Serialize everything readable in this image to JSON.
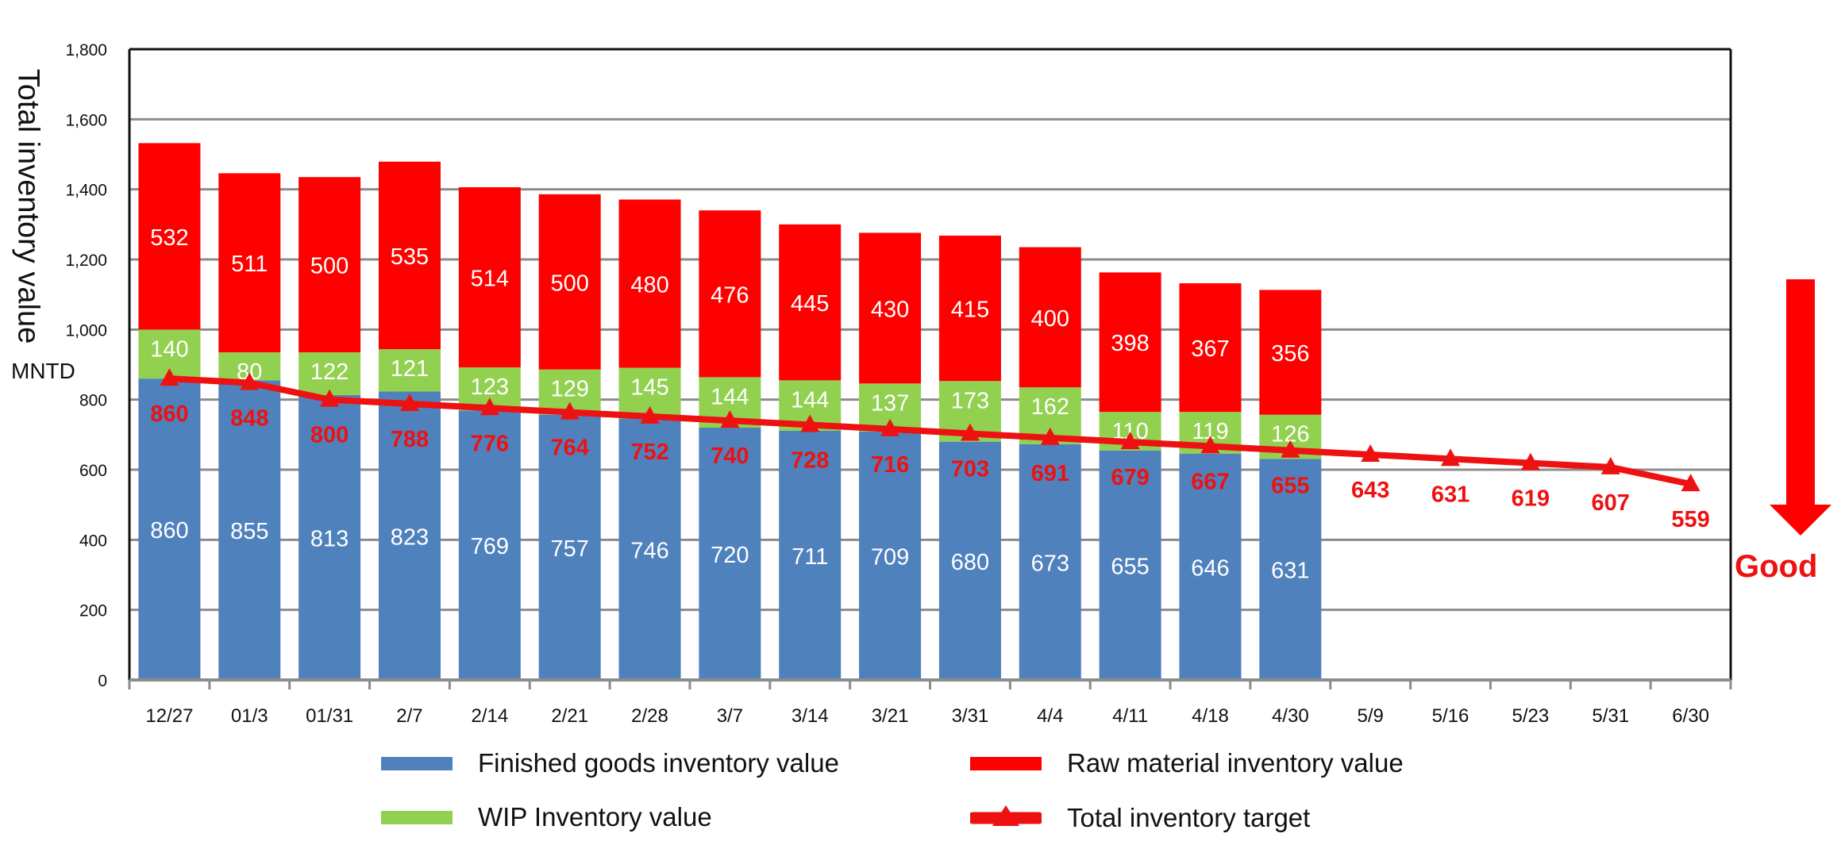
{
  "chart_data": {
    "type": "bar",
    "stacked": true,
    "ylabel": "Total inventory value",
    "unit": "MNTD",
    "ylim": [
      0,
      1800
    ],
    "yticks": [
      "0",
      "200",
      "400",
      "600",
      "800",
      "1,000",
      "1,200",
      "1,400",
      "1,600",
      "1,800"
    ],
    "grid": true,
    "categories": [
      "12/27",
      "01/3",
      "01/31",
      "2/7",
      "2/14",
      "2/21",
      "2/28",
      "3/7",
      "3/14",
      "3/21",
      "3/31",
      "4/4",
      "4/11",
      "4/18",
      "4/30",
      "5/9",
      "5/16",
      "5/23",
      "5/31",
      "6/30"
    ],
    "series": [
      {
        "name": "Finished goods inventory value",
        "kind": "bar",
        "color": "#4f81bd",
        "values": [
          860,
          855,
          813,
          823,
          769,
          757,
          746,
          720,
          711,
          709,
          680,
          673,
          655,
          646,
          631,
          null,
          null,
          null,
          null,
          null
        ]
      },
      {
        "name": "WIP Inventory value",
        "kind": "bar",
        "color": "#92d050",
        "values": [
          140,
          80,
          122,
          121,
          123,
          129,
          145,
          144,
          144,
          137,
          173,
          162,
          110,
          119,
          126,
          null,
          null,
          null,
          null,
          null
        ]
      },
      {
        "name": "Raw material inventory value",
        "kind": "bar",
        "color": "#ff0000",
        "values": [
          532,
          511,
          500,
          535,
          514,
          500,
          480,
          476,
          445,
          430,
          415,
          400,
          398,
          367,
          356,
          null,
          null,
          null,
          null,
          null
        ]
      },
      {
        "name": "Total inventory target",
        "kind": "line",
        "color": "#ee1111",
        "values": [
          860,
          848,
          800,
          788,
          776,
          764,
          752,
          740,
          728,
          716,
          703,
          691,
          679,
          667,
          655,
          643,
          631,
          619,
          607,
          559
        ]
      }
    ],
    "legend": "bottom",
    "annotation": "Good"
  }
}
